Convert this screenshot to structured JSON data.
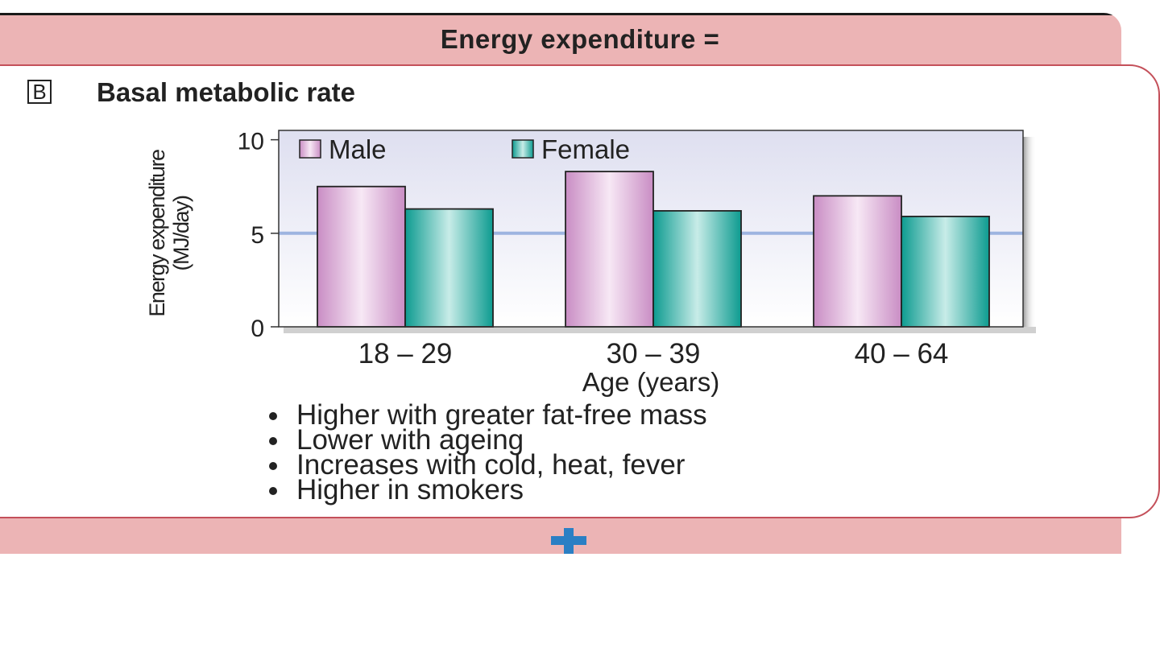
{
  "header": {
    "title": "Energy expenditure ="
  },
  "section": {
    "letter": "B",
    "title": "Basal metabolic rate"
  },
  "chart_data": {
    "type": "bar",
    "categories": [
      "18 – 29",
      "30 – 39",
      "40 – 64"
    ],
    "series": [
      {
        "name": "Male",
        "values": [
          7.5,
          8.3,
          7.0
        ],
        "color": "#d8a8d4"
      },
      {
        "name": "Female",
        "values": [
          6.3,
          6.2,
          5.9
        ],
        "color": "#1aa89e"
      }
    ],
    "ylabel_line1": "Energy expenditure",
    "ylabel_line2": "(MJ/day)",
    "xlabel": "Age (years)",
    "ylim": [
      0,
      10.5
    ],
    "yticks": [
      0,
      5,
      10
    ],
    "gridline_at": 5,
    "legend_position": "top-left"
  },
  "bullets": [
    "Higher with greater fat-free mass",
    "Lower with ageing",
    "Increases with cold, heat, fever",
    "Higher in smokers"
  ],
  "colors": {
    "panel": "#ecb4b5",
    "card_border": "#c4505a",
    "plus": "#2b7fc4"
  },
  "icons": {
    "plus": "plus-icon"
  }
}
